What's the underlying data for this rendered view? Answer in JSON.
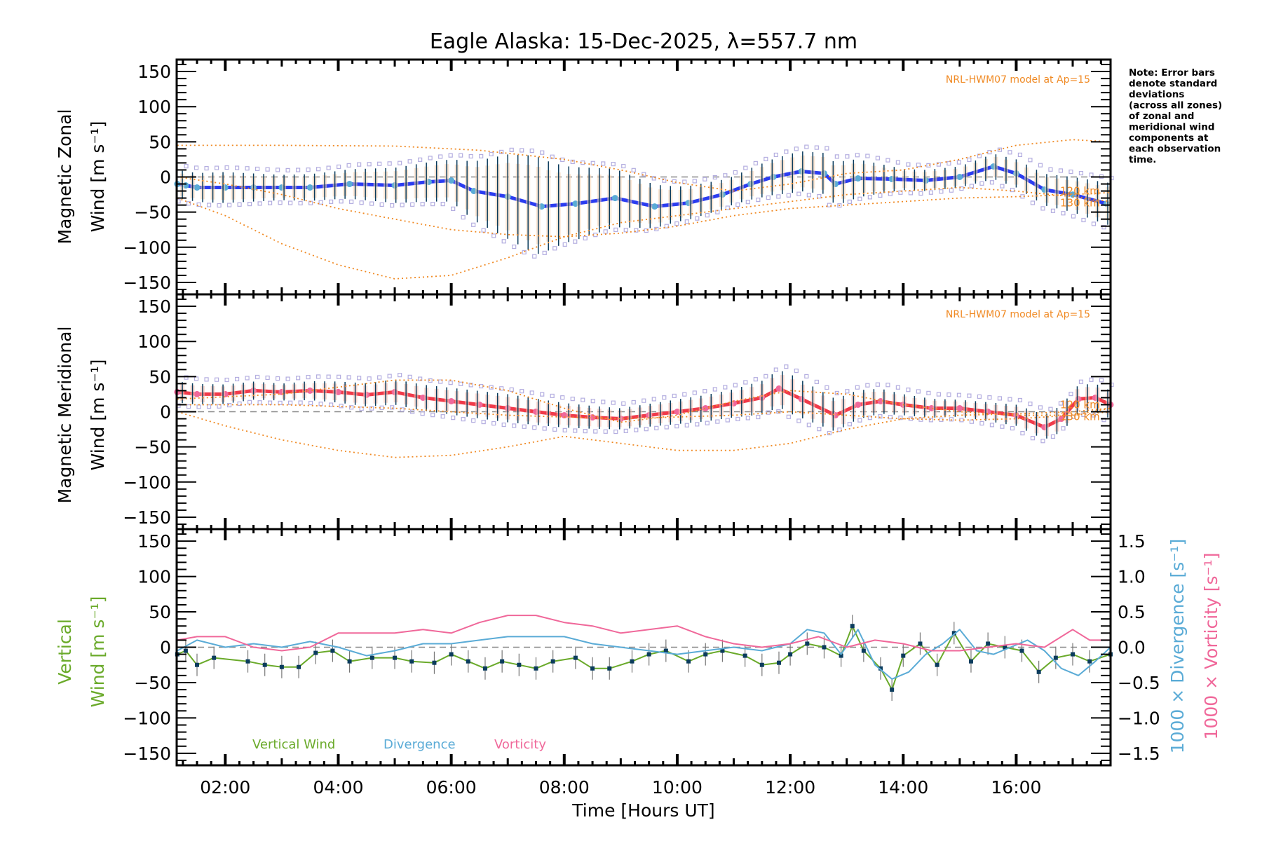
{
  "chart_data": [
    {
      "type": "line",
      "panel": "zonal",
      "title": "Eagle Alaska: 15-Dec-2025, λ=557.7 nm",
      "ylabel_line1": "Magnetic Zonal",
      "ylabel_line2": "Wind [m s⁻¹]",
      "ylim": [
        -167,
        167
      ],
      "yticks": [
        150,
        100,
        50,
        0,
        -50,
        -100,
        -150
      ],
      "model_label": "NRL-HWM07 model at Ap=15",
      "altitude_labels": [
        "120 km",
        "130 km"
      ],
      "series": [
        {
          "name": "Fitted zonal wind",
          "color": "#2b3cf0",
          "x": [
            1.15,
            1.3,
            1.5,
            2.0,
            2.5,
            3.0,
            3.5,
            4.2,
            5.0,
            5.6,
            6.0,
            6.4,
            7.0,
            7.6,
            8.2,
            8.9,
            9.6,
            10.2,
            10.8,
            11.3,
            11.7,
            12.2,
            12.6,
            12.8,
            13.2,
            13.8,
            14.4,
            15.0,
            15.6,
            16.0,
            16.5,
            17.0,
            17.6
          ],
          "values": [
            -10,
            -12,
            -15,
            -15,
            -15,
            -15,
            -15,
            -10,
            -12,
            -7,
            -5,
            -20,
            -28,
            -42,
            -38,
            -30,
            -42,
            -37,
            -25,
            -10,
            0,
            8,
            5,
            -10,
            -2,
            -3,
            -5,
            0,
            15,
            5,
            -18,
            -25,
            -38
          ]
        },
        {
          "name": "Error bar half-width",
          "color": "#0b3c5d",
          "x": [
            1.3,
            2.0,
            3.0,
            4.0,
            5.0,
            6.0,
            7.0,
            7.5,
            8.0,
            9.0,
            10.0,
            11.0,
            12.0,
            13.0,
            14.0,
            15.0,
            16.0,
            17.0,
            17.6
          ],
          "values": [
            20,
            22,
            18,
            20,
            25,
            30,
            60,
            70,
            55,
            40,
            25,
            20,
            28,
            30,
            15,
            15,
            20,
            25,
            30
          ]
        },
        {
          "name": "HWM07 model (upper)",
          "color": "#f08a24",
          "style": "dotted",
          "x": [
            1.15,
            3,
            5,
            6.5,
            8,
            9,
            10,
            11,
            12,
            13,
            14,
            15,
            16,
            17,
            17.67
          ],
          "values": [
            45,
            45,
            44,
            38,
            25,
            10,
            -8,
            -20,
            -10,
            5,
            10,
            25,
            45,
            53,
            50
          ]
        },
        {
          "name": "HWM07 model (lower)",
          "color": "#f08a24",
          "style": "dotted",
          "x": [
            1.15,
            2,
            3,
            4,
            5,
            6,
            7,
            8,
            9,
            10,
            11,
            12,
            13,
            14,
            15,
            16,
            17,
            17.67
          ],
          "values": [
            -30,
            -55,
            -95,
            -125,
            -145,
            -140,
            -115,
            -85,
            -65,
            -55,
            -45,
            -35,
            -25,
            -20,
            -15,
            -20,
            -28,
            -35
          ]
        },
        {
          "name": "HWM07 model (mid)",
          "color": "#f08a24",
          "style": "dotted",
          "x": [
            1.15,
            2,
            3,
            4,
            5,
            6,
            7,
            8,
            9,
            10,
            11,
            12,
            13,
            14,
            15,
            16,
            17,
            17.67
          ],
          "values": [
            0,
            -10,
            -25,
            -45,
            -60,
            -75,
            -82,
            -85,
            -80,
            -70,
            -55,
            -45,
            -40,
            -35,
            -30,
            -28,
            -25,
            -22
          ]
        }
      ]
    },
    {
      "type": "line",
      "panel": "meridional",
      "ylabel_line1": "Magnetic Meridional",
      "ylabel_line2": "Wind [m s⁻¹]",
      "ylim": [
        -167,
        167
      ],
      "yticks": [
        150,
        100,
        50,
        0,
        -50,
        -100,
        -150
      ],
      "model_label": "NRL-HWM07 model at Ap=15",
      "altitude_labels": [
        "120 km",
        "130 km"
      ],
      "series": [
        {
          "name": "Fitted meridional wind",
          "color": "#f03a4a",
          "x": [
            1.15,
            1.5,
            2.0,
            2.5,
            3.0,
            3.5,
            4.0,
            4.5,
            5.0,
            5.5,
            6.0,
            6.5,
            7.0,
            7.5,
            8.0,
            8.5,
            9.0,
            9.5,
            10.0,
            10.5,
            11.0,
            11.5,
            11.8,
            12.2,
            12.8,
            13.2,
            13.6,
            14.0,
            14.5,
            15.0,
            15.5,
            16.0,
            16.5,
            16.8,
            17.1,
            17.4,
            17.67
          ],
          "values": [
            28,
            25,
            25,
            30,
            28,
            30,
            28,
            24,
            28,
            20,
            15,
            10,
            5,
            0,
            -5,
            -8,
            -10,
            -5,
            0,
            5,
            12,
            20,
            33,
            18,
            -5,
            10,
            15,
            10,
            5,
            5,
            0,
            -5,
            -22,
            -10,
            18,
            20,
            10
          ]
        },
        {
          "name": "Error bar half-width",
          "color": "#0b3c5d",
          "x": [
            1.3,
            3.0,
            5.0,
            7.0,
            9.0,
            11.0,
            12.0,
            13.0,
            14.0,
            15.0,
            16.0,
            17.0
          ],
          "values": [
            15,
            12,
            18,
            20,
            15,
            20,
            28,
            22,
            15,
            12,
            15,
            20
          ]
        },
        {
          "name": "HWM07 model (upper)",
          "color": "#f08a24",
          "style": "dotted",
          "x": [
            1.15,
            3,
            4,
            5,
            6,
            7,
            8,
            9,
            10,
            11,
            12,
            13,
            14,
            15,
            16,
            17,
            17.67
          ],
          "values": [
            18,
            25,
            35,
            45,
            45,
            30,
            5,
            -15,
            -5,
            15,
            30,
            25,
            10,
            0,
            -5,
            -5,
            5
          ]
        },
        {
          "name": "HWM07 model (lower)",
          "color": "#f08a24",
          "style": "dotted",
          "x": [
            1.15,
            2,
            3,
            4,
            5,
            6,
            7,
            8,
            9,
            10,
            11,
            12,
            13,
            14,
            15,
            16,
            17,
            17.67
          ],
          "values": [
            0,
            -20,
            -40,
            -55,
            -65,
            -62,
            -50,
            -35,
            -45,
            -55,
            -55,
            -45,
            -25,
            -10,
            -5,
            -3,
            0,
            5
          ]
        },
        {
          "name": "HWM07 model (mid)",
          "color": "#f08a24",
          "style": "dotted",
          "x": [
            1.15,
            3,
            5,
            7,
            9,
            11,
            12,
            13,
            14,
            15,
            16,
            17,
            17.67
          ],
          "values": [
            10,
            10,
            5,
            -5,
            -10,
            -5,
            0,
            -5,
            -10,
            -12,
            -10,
            -5,
            0
          ]
        }
      ]
    },
    {
      "type": "line",
      "panel": "vertical",
      "ylabel_line1": "Vertical",
      "ylabel_line2": "Wind [m s⁻¹]",
      "ylim": [
        -167,
        167
      ],
      "yticks": [
        150,
        100,
        50,
        0,
        -50,
        -100,
        -150
      ],
      "y2label_div": "1000 × Divergence [s⁻¹]",
      "y2label_vort": "1000 × Vorticity [s⁻¹]",
      "y2lim": [
        -1.67,
        1.67
      ],
      "y2ticks": [
        "1.5",
        "1.0",
        "0.5",
        "0.0",
        "-0.5",
        "-1.0",
        "-1.5"
      ],
      "legend": [
        "Vertical Wind",
        "Divergence",
        "Vorticity"
      ],
      "xlabel": "Time [Hours UT]",
      "xticks": [
        "02:00",
        "04:00",
        "06:00",
        "08:00",
        "10:00",
        "12:00",
        "14:00",
        "16:00"
      ],
      "xticks_hours": [
        2,
        4,
        6,
        8,
        10,
        12,
        14,
        16
      ],
      "xlim": [
        1.14,
        17.67
      ],
      "series": [
        {
          "name": "Vertical Wind",
          "color": "#6aaa2a",
          "marker_color": "#0b3c5d",
          "x": [
            1.15,
            1.3,
            1.5,
            1.8,
            2.4,
            2.7,
            3.0,
            3.3,
            3.6,
            3.9,
            4.2,
            4.6,
            5.0,
            5.3,
            5.7,
            6.0,
            6.3,
            6.6,
            6.9,
            7.2,
            7.5,
            7.8,
            8.2,
            8.5,
            8.8,
            9.2,
            9.5,
            9.8,
            10.2,
            10.5,
            10.8,
            11.2,
            11.5,
            11.8,
            12.0,
            12.3,
            12.6,
            12.9,
            13.1,
            13.3,
            13.6,
            13.8,
            14.0,
            14.3,
            14.6,
            14.9,
            15.2,
            15.5,
            15.8,
            16.1,
            16.4,
            16.7,
            17.0,
            17.3,
            17.67
          ],
          "values": [
            -10,
            -5,
            -25,
            -15,
            -20,
            -25,
            -28,
            -28,
            -8,
            -5,
            -20,
            -15,
            -15,
            -20,
            -22,
            -10,
            -20,
            -30,
            -20,
            -25,
            -30,
            -20,
            -15,
            -30,
            -30,
            -20,
            -10,
            -5,
            -20,
            -10,
            -5,
            -12,
            -25,
            -22,
            -10,
            5,
            0,
            -12,
            30,
            -5,
            -30,
            -60,
            -12,
            5,
            -25,
            20,
            -20,
            5,
            0,
            -5,
            -35,
            -15,
            -10,
            -20,
            -10
          ]
        },
        {
          "name": "Divergence",
          "color": "#5aabd6",
          "x": [
            1.15,
            1.5,
            2.0,
            2.5,
            3.0,
            3.5,
            4.0,
            4.5,
            5.0,
            5.5,
            6.0,
            6.5,
            7.0,
            7.5,
            8.0,
            8.5,
            9.0,
            9.5,
            10.0,
            10.5,
            11.0,
            11.5,
            12.0,
            12.3,
            12.6,
            12.9,
            13.2,
            13.5,
            13.8,
            14.1,
            14.4,
            14.7,
            15.0,
            15.3,
            15.6,
            15.9,
            16.2,
            16.5,
            16.8,
            17.1,
            17.4,
            17.67
          ],
          "values": [
            -0.05,
            0.1,
            0.0,
            0.05,
            0.0,
            0.08,
            0.0,
            -0.12,
            -0.05,
            0.05,
            0.05,
            0.1,
            0.15,
            0.15,
            0.15,
            0.05,
            0.0,
            -0.05,
            -0.1,
            -0.05,
            0.0,
            -0.05,
            0.05,
            0.25,
            0.2,
            -0.1,
            0.25,
            -0.25,
            -0.45,
            -0.35,
            -0.1,
            0.05,
            0.25,
            -0.05,
            -0.1,
            0.0,
            0.1,
            -0.05,
            -0.3,
            -0.4,
            -0.2,
            0.0
          ]
        },
        {
          "name": "Vorticity",
          "color": "#f0689a",
          "x": [
            1.15,
            1.5,
            2.0,
            2.5,
            3.0,
            3.5,
            4.0,
            4.5,
            5.0,
            5.5,
            6.0,
            6.5,
            7.0,
            7.5,
            8.0,
            8.5,
            9.0,
            9.5,
            10.0,
            10.5,
            11.0,
            11.5,
            12.0,
            12.5,
            13.0,
            13.5,
            14.0,
            14.5,
            15.0,
            15.5,
            16.0,
            16.5,
            17.0,
            17.3,
            17.67
          ],
          "values": [
            0.1,
            0.15,
            0.15,
            0.0,
            -0.05,
            0.0,
            0.2,
            0.2,
            0.2,
            0.25,
            0.2,
            0.35,
            0.45,
            0.45,
            0.35,
            0.3,
            0.2,
            0.25,
            0.3,
            0.15,
            0.05,
            0.0,
            0.05,
            0.15,
            0.0,
            0.1,
            0.05,
            -0.05,
            -0.05,
            0.0,
            0.05,
            0.0,
            0.25,
            0.1,
            0.1
          ]
        }
      ]
    }
  ],
  "note": [
    "Note: Error bars",
    "denote standard",
    "deviations",
    "(across all zones)",
    "of zonal and",
    "meridional wind",
    "components at",
    "each observation",
    "time."
  ]
}
